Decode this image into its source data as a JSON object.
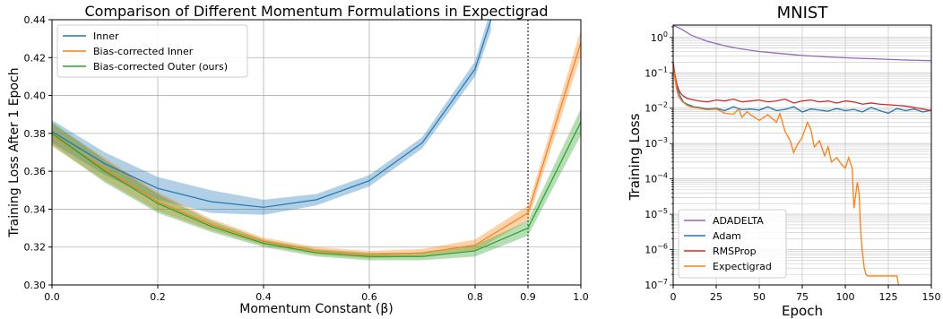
{
  "chart_data": [
    {
      "type": "line",
      "title": "Comparison of Different Momentum Formulations in Expectigrad",
      "xlabel": "Momentum Constant (β)",
      "ylabel": "Training Loss After 1 Epoch",
      "xlim": [
        0.0,
        1.0
      ],
      "ylim": [
        0.3,
        0.44
      ],
      "x_ticks": [
        "0.0",
        "0.2",
        "0.4",
        "0.6",
        "0.8",
        "0.9",
        "1.0"
      ],
      "y_ticks": [
        "0.30",
        "0.32",
        "0.34",
        "0.36",
        "0.38",
        "0.40",
        "0.42",
        "0.44"
      ],
      "grid": true,
      "legend_position": "top-left",
      "vline_x": 0.9,
      "x": [
        0.0,
        0.1,
        0.2,
        0.3,
        0.4,
        0.5,
        0.6,
        0.7,
        0.8,
        0.9,
        1.0
      ],
      "series": [
        {
          "name": "Inner",
          "color": "#1f77b4",
          "x": [
            0.0,
            0.1,
            0.2,
            0.3,
            0.4,
            0.5,
            0.6,
            0.7,
            0.8,
            0.83
          ],
          "values": [
            0.381,
            0.364,
            0.351,
            0.344,
            0.341,
            0.345,
            0.355,
            0.375,
            0.414,
            0.44
          ],
          "band": [
            0.006,
            0.006,
            0.006,
            0.006,
            0.004,
            0.003,
            0.003,
            0.003,
            0.004,
            0.006
          ]
        },
        {
          "name": "Bias-corrected Inner",
          "color": "#ff7f0e",
          "values": [
            0.379,
            0.361,
            0.344,
            0.332,
            0.323,
            0.318,
            0.316,
            0.317,
            0.321,
            0.338,
            0.428
          ],
          "band": [
            0.006,
            0.006,
            0.005,
            0.003,
            0.002,
            0.002,
            0.002,
            0.002,
            0.003,
            0.004,
            0.007
          ]
        },
        {
          "name": "Bias-corrected Outer (ours)",
          "color": "#2ca02c",
          "values": [
            0.38,
            0.36,
            0.343,
            0.331,
            0.322,
            0.317,
            0.315,
            0.315,
            0.318,
            0.33,
            0.386
          ],
          "band": [
            0.006,
            0.006,
            0.005,
            0.003,
            0.002,
            0.002,
            0.002,
            0.002,
            0.003,
            0.004,
            0.007
          ]
        }
      ]
    },
    {
      "type": "line",
      "title": "MNIST",
      "xlabel": "Epoch",
      "ylabel": "Training Loss",
      "xlim": [
        0,
        150
      ],
      "ylim_log10": [
        -7,
        0.35
      ],
      "yscale": "log",
      "x_ticks": [
        "0",
        "25",
        "50",
        "75",
        "100",
        "125",
        "150"
      ],
      "y_ticks": [
        "10^0",
        "10^-1",
        "10^-2",
        "10^-3",
        "10^-4",
        "10^-5",
        "10^-6",
        "10^-7"
      ],
      "grid": true,
      "legend_position": "bottom-left",
      "series": [
        {
          "name": "ADADELTA",
          "color": "#9467bd",
          "x": [
            0,
            5,
            10,
            15,
            20,
            30,
            40,
            50,
            60,
            75,
            90,
            105,
            120,
            135,
            150
          ],
          "values": [
            2.2,
            1.7,
            1.2,
            0.95,
            0.78,
            0.58,
            0.47,
            0.4,
            0.36,
            0.31,
            0.28,
            0.26,
            0.245,
            0.23,
            0.22
          ]
        },
        {
          "name": "Adam",
          "color": "#1f77b4",
          "x": [
            0,
            1,
            2,
            3,
            4,
            5,
            6,
            8,
            10,
            12,
            15,
            20,
            25,
            30,
            35,
            40,
            45,
            50,
            55,
            60,
            65,
            70,
            75,
            80,
            85,
            90,
            95,
            100,
            105,
            110,
            115,
            120,
            125,
            130,
            135,
            140,
            145,
            150
          ],
          "values": [
            0.18,
            0.08,
            0.045,
            0.03,
            0.022,
            0.018,
            0.015,
            0.013,
            0.012,
            0.011,
            0.0105,
            0.0095,
            0.01,
            0.0085,
            0.011,
            0.009,
            0.0095,
            0.0088,
            0.011,
            0.0085,
            0.0092,
            0.011,
            0.0078,
            0.0095,
            0.0088,
            0.0082,
            0.0098,
            0.0085,
            0.0092,
            0.0078,
            0.0105,
            0.0085,
            0.0072,
            0.0098,
            0.0085,
            0.0095,
            0.0078,
            0.0088
          ]
        },
        {
          "name": "RMSProp",
          "color": "#d62728",
          "x": [
            0,
            1,
            2,
            3,
            4,
            5,
            6,
            8,
            10,
            12,
            15,
            20,
            25,
            30,
            35,
            40,
            45,
            50,
            55,
            60,
            65,
            70,
            75,
            80,
            85,
            90,
            95,
            100,
            105,
            110,
            115,
            120,
            125,
            130,
            135,
            140,
            145,
            150
          ],
          "values": [
            0.2,
            0.09,
            0.05,
            0.035,
            0.028,
            0.024,
            0.022,
            0.019,
            0.018,
            0.017,
            0.016,
            0.015,
            0.017,
            0.016,
            0.018,
            0.015,
            0.016,
            0.017,
            0.015,
            0.016,
            0.018,
            0.014,
            0.016,
            0.017,
            0.015,
            0.016,
            0.014,
            0.016,
            0.015,
            0.013,
            0.014,
            0.013,
            0.0125,
            0.012,
            0.0115,
            0.0105,
            0.0095,
            0.0085
          ]
        },
        {
          "name": "Expectigrad",
          "color": "#ff7f0e",
          "x": [
            0,
            1,
            2,
            3,
            5,
            8,
            10,
            15,
            20,
            25,
            30,
            35,
            38,
            40,
            43,
            45,
            50,
            55,
            60,
            62,
            65,
            68,
            70,
            72,
            75,
            78,
            80,
            82,
            85,
            88,
            90,
            92,
            95,
            98,
            100,
            102,
            104,
            105,
            107,
            108,
            109,
            110,
            111,
            112,
            113,
            115,
            120,
            125,
            130,
            132,
            135,
            140,
            145,
            150
          ],
          "values": [
            0.15,
            0.07,
            0.035,
            0.022,
            0.016,
            0.012,
            0.011,
            0.01,
            0.009,
            0.0095,
            0.0072,
            0.0068,
            0.0095,
            0.0055,
            0.008,
            0.0065,
            0.0045,
            0.0065,
            0.004,
            0.007,
            0.0022,
            0.0012,
            0.00055,
            0.0009,
            0.0015,
            0.004,
            0.0025,
            0.0008,
            0.0012,
            0.00045,
            0.0008,
            0.0003,
            0.0004,
            0.00025,
            0.0002,
            0.0004,
            0.0002,
            1.5e-05,
            8e-05,
            4e-05,
            3e-06,
            8e-07,
            3e-07,
            2e-07,
            1.8e-07,
            1.8e-07,
            1.8e-07,
            1.8e-07,
            1.8e-07,
            5e-08,
            2e-08,
            2e-08,
            2e-08,
            2e-08
          ]
        }
      ]
    }
  ]
}
